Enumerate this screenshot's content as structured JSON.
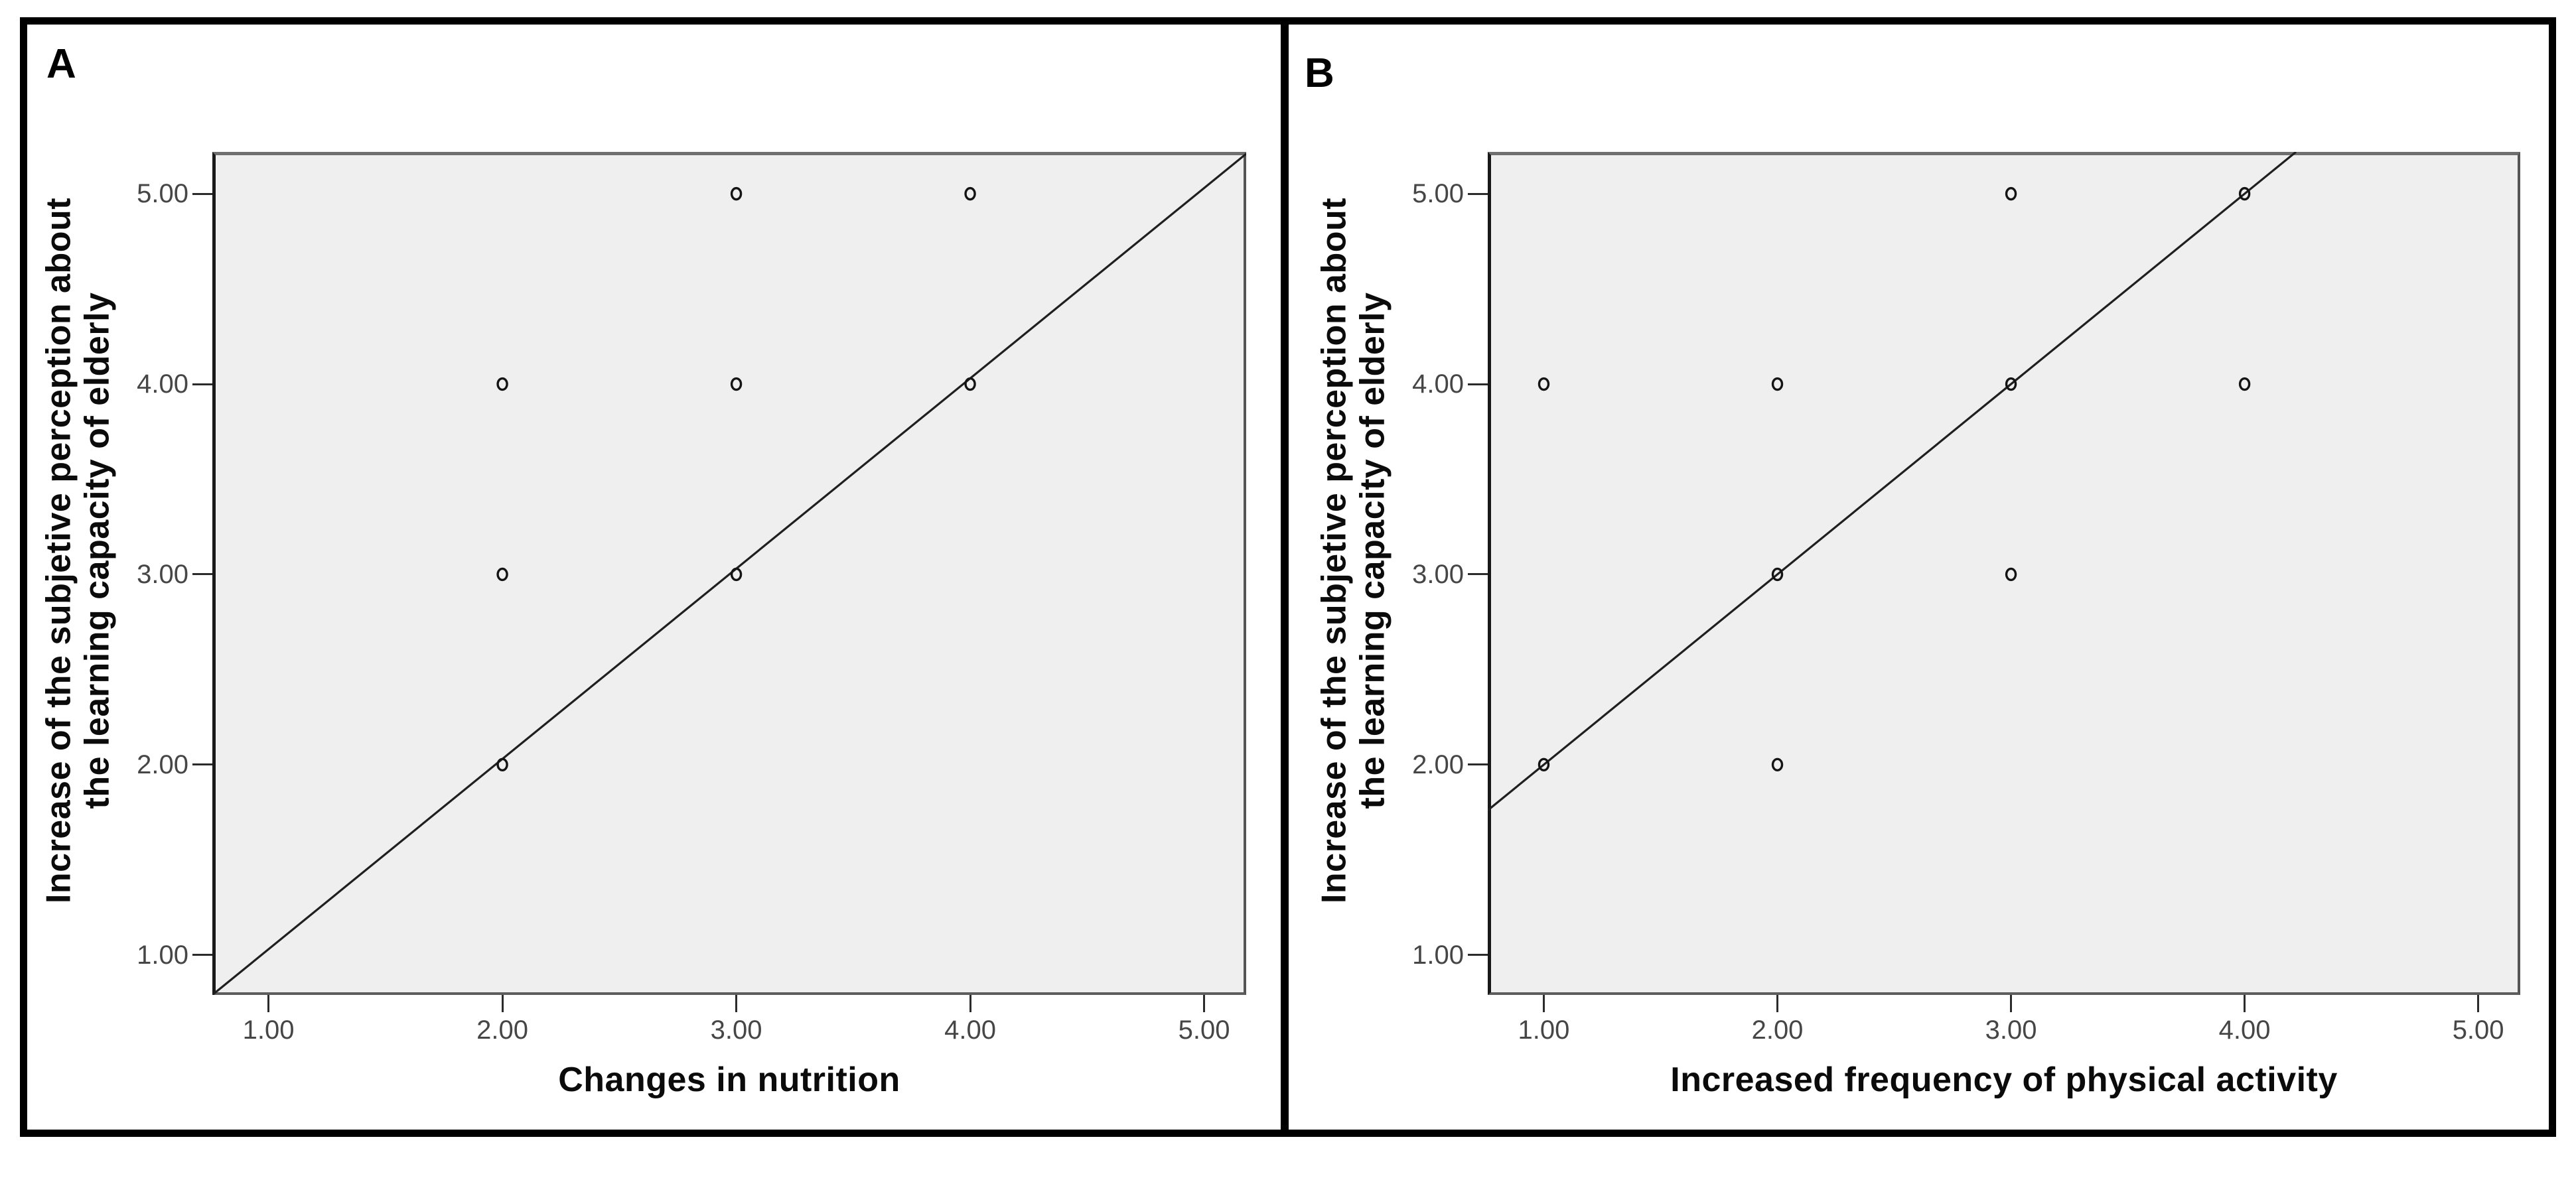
{
  "figure": {
    "panels": [
      {
        "label": "A",
        "x_axis_title": "Changes in nutrition",
        "y_axis_title_line1": "Increase of the subjetive perception about",
        "y_axis_title_line2": "the learning capacity of elderly",
        "x_tick_labels": [
          "1.00",
          "2.00",
          "3.00",
          "4.00",
          "5.00"
        ],
        "y_tick_labels": [
          "1.00",
          "2.00",
          "3.00",
          "4.00",
          "5.00"
        ]
      },
      {
        "label": "B",
        "x_axis_title": "Increased frequency of physical activity",
        "y_axis_title_line1": "Increase of the subjetive perception about",
        "y_axis_title_line2": "the learning capacity of elderly",
        "x_tick_labels": [
          "1.00",
          "2.00",
          "3.00",
          "4.00",
          "5.00"
        ],
        "y_tick_labels": [
          "1.00",
          "2.00",
          "3.00",
          "4.00",
          "5.00"
        ]
      }
    ],
    "colors": {
      "figure_border": "#000000",
      "plot_background": "#efefef",
      "frame_gray": "#6f6f6f",
      "axis_black": "#191919",
      "marker_stroke": "#141414",
      "fit_line": "#1f1f1f",
      "tick_label": "#464646"
    }
  },
  "chart_data": [
    {
      "type": "scatter",
      "panel_label": "A",
      "title": "",
      "xlabel": "Changes in nutrition",
      "ylabel": "Increase of the subjetive perception about the learning capacity of elderly",
      "x_tick_values": [
        1,
        2,
        3,
        4,
        5
      ],
      "y_tick_values": [
        1,
        2,
        3,
        4,
        5
      ],
      "xlim": [
        0.76,
        5.18
      ],
      "ylim": [
        0.79,
        5.22
      ],
      "points": [
        [
          2,
          2
        ],
        [
          2,
          3
        ],
        [
          2,
          4
        ],
        [
          3,
          3
        ],
        [
          3,
          4
        ],
        [
          3,
          5
        ],
        [
          4,
          4
        ],
        [
          4,
          5
        ]
      ],
      "fit_line": {
        "slope": 1,
        "intercept": 0.03
      },
      "marker": "open-circle",
      "grid": false,
      "legend": null
    },
    {
      "type": "scatter",
      "panel_label": "B",
      "title": "",
      "xlabel": "Increased frequency of physical activity",
      "ylabel": "Increase of the subjetive perception about the learning capacity of elderly",
      "x_tick_values": [
        1,
        2,
        3,
        4,
        5
      ],
      "y_tick_values": [
        1,
        2,
        3,
        4,
        5
      ],
      "xlim": [
        0.76,
        5.18
      ],
      "ylim": [
        0.79,
        5.22
      ],
      "points": [
        [
          1,
          2
        ],
        [
          1,
          4
        ],
        [
          2,
          2
        ],
        [
          2,
          3
        ],
        [
          2,
          4
        ],
        [
          3,
          3
        ],
        [
          3,
          4
        ],
        [
          3,
          5
        ],
        [
          4,
          4
        ],
        [
          4,
          5
        ]
      ],
      "fit_line": {
        "slope": 1,
        "intercept": 1
      },
      "marker": "open-circle",
      "grid": false,
      "legend": null
    }
  ]
}
